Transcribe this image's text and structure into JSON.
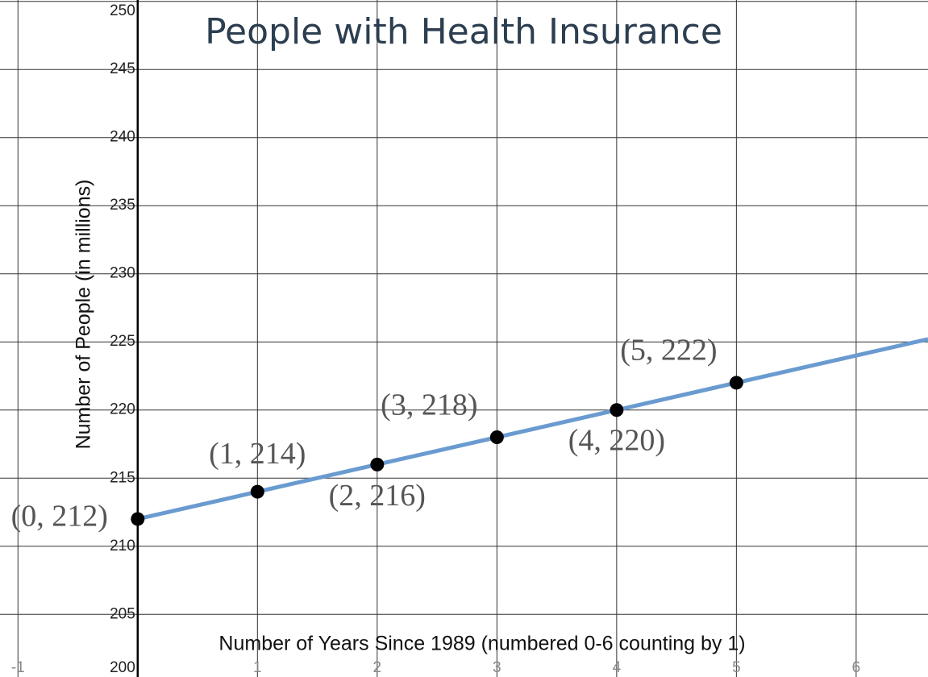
{
  "chart_data": {
    "type": "scatter",
    "title": "People with Health Insurance",
    "x_label": "Number of Years Since 1989 (numbered 0-6 counting by 1)",
    "y_label": "Number of People (in millions)",
    "xlim": [
      -1.15,
      6.6
    ],
    "ylim": [
      200.4,
      250.1
    ],
    "xticks": [
      -1,
      1,
      2,
      3,
      4,
      5,
      6
    ],
    "yticks": [
      200,
      205,
      210,
      215,
      220,
      225,
      230,
      235,
      240,
      245,
      250
    ],
    "grid": true,
    "series": [
      {
        "name": "points",
        "color": "#000000",
        "x": [
          0,
          1,
          2,
          3,
          4,
          5
        ],
        "values": [
          212,
          214,
          216,
          218,
          220,
          222
        ],
        "value_labels": [
          "(0, 212)",
          "(1, 214)",
          "(2, 216)",
          "(3, 218)",
          "(4, 220)",
          "(5, 222)"
        ]
      },
      {
        "name": "line",
        "color": "#6a9bd0",
        "x": [
          0,
          6.6
        ],
        "values": [
          212,
          225.2
        ]
      }
    ]
  }
}
